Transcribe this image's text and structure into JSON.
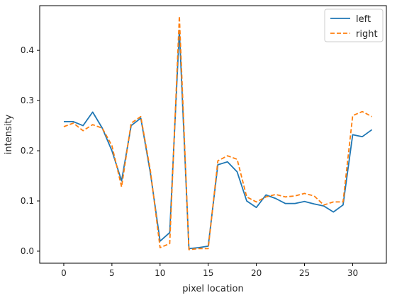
{
  "chart_data": {
    "type": "line",
    "title": "",
    "xlabel": "pixel location",
    "ylabel": "intensity",
    "xlim": [
      -2.5,
      33.5
    ],
    "ylim": [
      -0.024,
      0.489
    ],
    "xticks": [
      0,
      5,
      10,
      15,
      20,
      25,
      30
    ],
    "yticks": [
      0.0,
      0.1,
      0.2,
      0.3,
      0.4
    ],
    "legend": "top-right",
    "grid": false,
    "x": [
      0,
      1,
      2,
      3,
      4,
      5,
      6,
      7,
      8,
      9,
      10,
      11,
      12,
      13,
      14,
      15,
      16,
      17,
      18,
      19,
      20,
      21,
      22,
      23,
      24,
      25,
      26,
      27,
      28,
      29,
      30,
      31,
      32
    ],
    "series": [
      {
        "name": "left",
        "color": "#1f77b4",
        "linestyle": "solid",
        "values": [
          0.258,
          0.258,
          0.25,
          0.277,
          0.245,
          0.2,
          0.14,
          0.25,
          0.265,
          0.155,
          0.02,
          0.037,
          0.44,
          0.005,
          0.007,
          0.01,
          0.172,
          0.178,
          0.158,
          0.1,
          0.087,
          0.112,
          0.105,
          0.095,
          0.095,
          0.099,
          0.094,
          0.09,
          0.078,
          0.092,
          0.232,
          0.228,
          0.242
        ]
      },
      {
        "name": "right",
        "color": "#ff7f0e",
        "linestyle": "dashed",
        "values": [
          0.248,
          0.255,
          0.24,
          0.252,
          0.245,
          0.21,
          0.128,
          0.255,
          0.268,
          0.16,
          0.007,
          0.015,
          0.468,
          0.003,
          0.005,
          0.005,
          0.18,
          0.19,
          0.183,
          0.108,
          0.098,
          0.108,
          0.113,
          0.108,
          0.11,
          0.115,
          0.11,
          0.092,
          0.098,
          0.098,
          0.27,
          0.278,
          0.268
        ]
      }
    ]
  }
}
